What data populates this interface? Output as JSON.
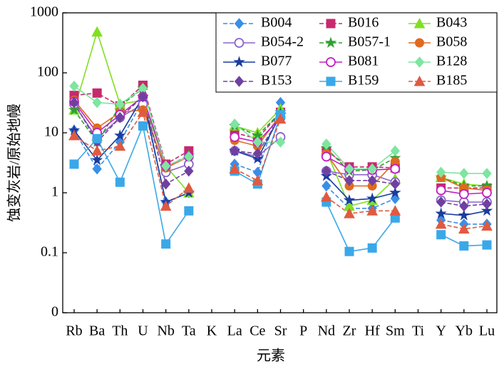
{
  "chart_data": {
    "type": "line",
    "y_label": "蚀变灰岩/原始地幔",
    "x_label": "元素",
    "yscale": "log",
    "categories": [
      "Rb",
      "Ba",
      "Th",
      "U",
      "Nb",
      "Ta",
      "K",
      "La",
      "Ce",
      "Sr",
      "P",
      "Nd",
      "Zr",
      "Hf",
      "Sm",
      "Ti",
      "Y",
      "Yb",
      "Lu"
    ],
    "ylim": [
      0.01,
      1000
    ],
    "yticks": [
      {
        "value": 0.01,
        "label": "0"
      },
      0.1,
      1,
      10,
      100,
      1000
    ],
    "series": [
      {
        "name": "B004",
        "color": "#3a8ee6",
        "marker": "diamond",
        "dashed": true,
        "values": [
          11,
          2.5,
          7,
          35,
          0.7,
          1.0,
          null,
          3,
          2.2,
          32,
          null,
          1.3,
          0.55,
          0.55,
          0.8,
          null,
          0.35,
          0.3,
          0.3
        ]
      },
      {
        "name": "B016",
        "color": "#c8286e",
        "marker": "square",
        "dashed": true,
        "values": [
          42,
          46,
          28,
          62,
          3,
          5,
          null,
          10,
          8,
          22,
          null,
          5,
          2.7,
          2.7,
          2.6,
          null,
          1.2,
          1.2,
          1.2
        ]
      },
      {
        "name": "B043",
        "color": "#80e020",
        "marker": "triangle",
        "dashed": false,
        "values": [
          24,
          480,
          30,
          35,
          2.8,
          1,
          null,
          13,
          10,
          25,
          null,
          5,
          0.6,
          0.75,
          1.7,
          null,
          1.8,
          1.4,
          1.3
        ]
      },
      {
        "name": "B054-2",
        "color": "#8a64cc",
        "marker": "open-circle",
        "dashed": false,
        "values": [
          30,
          8,
          18,
          30,
          2.2,
          3,
          null,
          5,
          4,
          8.5,
          null,
          2.3,
          2,
          2,
          1.5,
          null,
          0.75,
          0.7,
          0.7
        ]
      },
      {
        "name": "B057-1",
        "color": "#30a030",
        "marker": "star",
        "dashed": true,
        "values": [
          24,
          7,
          28,
          55,
          2.7,
          4.2,
          null,
          13,
          9,
          22,
          null,
          5.5,
          2.3,
          2.4,
          3.8,
          null,
          1.8,
          1.3,
          1.3
        ]
      },
      {
        "name": "B058",
        "color": "#e06a20",
        "marker": "circle",
        "dashed": false,
        "values": [
          35,
          12,
          22,
          24,
          2.6,
          4,
          null,
          7.5,
          6,
          20,
          null,
          4.5,
          1.3,
          1.3,
          3.3,
          null,
          1.8,
          1.2,
          1.1
        ]
      },
      {
        "name": "B077",
        "color": "#1a3ca0",
        "marker": "star",
        "dashed": false,
        "values": [
          11,
          3.5,
          9,
          40,
          0.7,
          1,
          null,
          5,
          3.7,
          20,
          null,
          1.9,
          0.75,
          0.8,
          1,
          null,
          0.45,
          0.42,
          0.5
        ]
      },
      {
        "name": "B081",
        "color": "#c020c0",
        "marker": "open-circle",
        "dashed": false,
        "values": [
          33,
          10,
          20,
          40,
          2.8,
          4,
          null,
          8.5,
          7,
          18,
          null,
          4,
          2.5,
          2.4,
          2.5,
          null,
          1.1,
          0.95,
          1
        ]
      },
      {
        "name": "B128",
        "color": "#7de6a0",
        "marker": "diamond",
        "dashed": false,
        "values": [
          60,
          32,
          30,
          55,
          2.8,
          4,
          null,
          14,
          7,
          7,
          null,
          6.5,
          2.5,
          2.5,
          5,
          null,
          2.2,
          2.1,
          2.1
        ]
      },
      {
        "name": "B153",
        "color": "#7040a0",
        "marker": "diamond",
        "dashed": true,
        "values": [
          32,
          7,
          18,
          40,
          1.4,
          2.3,
          null,
          5,
          4.5,
          19,
          null,
          2.3,
          1.6,
          1.6,
          1.4,
          null,
          0.7,
          0.6,
          0.65
        ]
      },
      {
        "name": "B159",
        "color": "#3aa8e8",
        "marker": "square",
        "dashed": false,
        "values": [
          3,
          8,
          1.5,
          13,
          0.14,
          0.5,
          null,
          2.3,
          1.4,
          20,
          null,
          0.7,
          0.105,
          0.12,
          0.38,
          null,
          0.2,
          0.13,
          0.135
        ]
      },
      {
        "name": "B185",
        "color": "#e05a40",
        "marker": "triangle",
        "dashed": true,
        "values": [
          9,
          5,
          6,
          22,
          0.6,
          1.2,
          null,
          2.5,
          1.6,
          17,
          null,
          0.85,
          0.45,
          0.5,
          0.5,
          null,
          0.3,
          0.25,
          0.28
        ]
      }
    ]
  }
}
